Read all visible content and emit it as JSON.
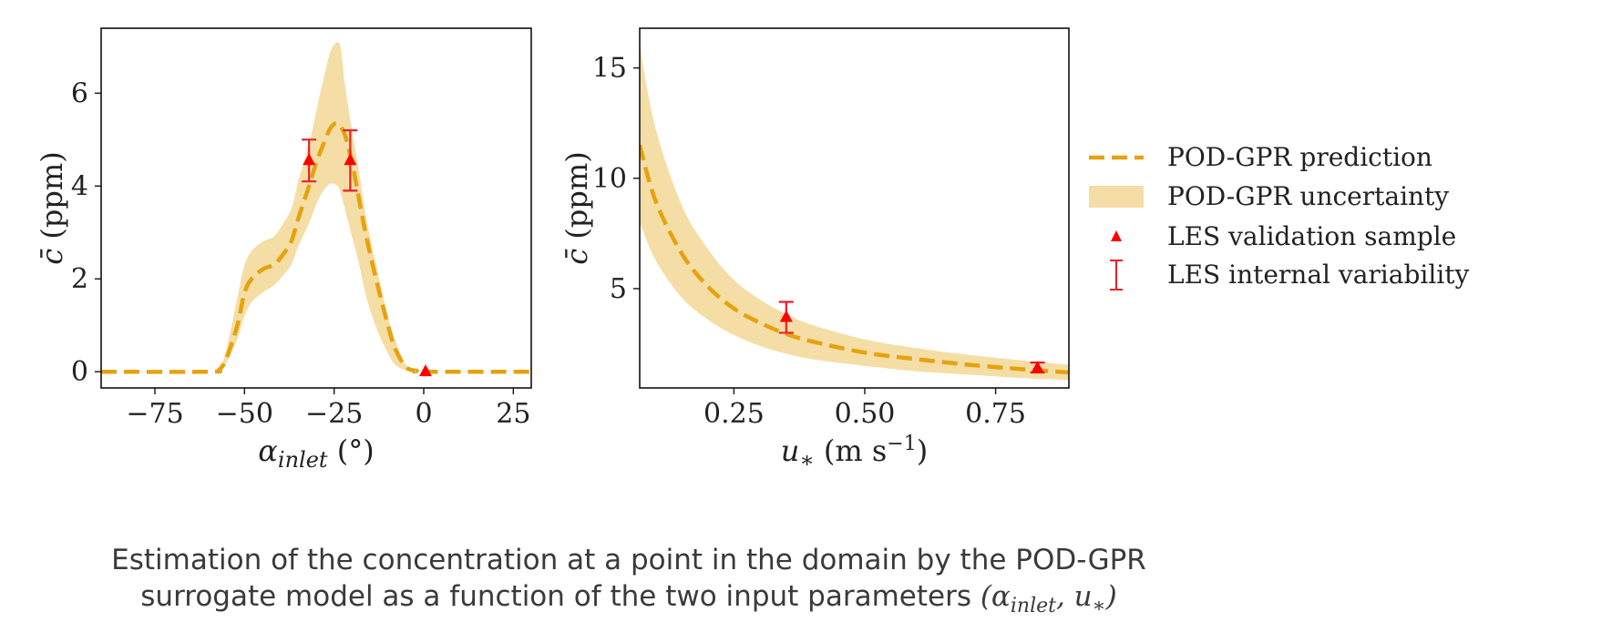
{
  "chart_data": [
    {
      "type": "line",
      "xlabel": "α_inlet (°)",
      "ylabel": "c̄ (ppm)",
      "xlim": [
        -90,
        30
      ],
      "ylim": [
        -0.35,
        7.4
      ],
      "xticks": [
        -75,
        -50,
        -25,
        0,
        25
      ],
      "xtick_labels": [
        "−75",
        "−50",
        "−25",
        "0",
        "25"
      ],
      "yticks": [
        0,
        2,
        4,
        6
      ],
      "ytick_labels": [
        "0",
        "2",
        "4",
        "6"
      ],
      "series": [
        {
          "name": "POD-GPR prediction",
          "style": "dashed",
          "x": [
            -90,
            -60,
            -57,
            -55,
            -52,
            -50,
            -48,
            -45,
            -42,
            -40,
            -37,
            -35,
            -32,
            -30,
            -28,
            -26,
            -24,
            -22,
            -20,
            -18,
            -16,
            -13,
            -10,
            -8,
            -5,
            -2,
            0,
            30
          ],
          "y": [
            0,
            0,
            0.05,
            0.3,
            1.0,
            1.7,
            2.0,
            2.2,
            2.3,
            2.45,
            2.8,
            3.3,
            4.0,
            4.5,
            4.9,
            5.25,
            5.35,
            5.1,
            4.5,
            3.7,
            2.9,
            1.9,
            1.0,
            0.5,
            0.1,
            0.02,
            0,
            0
          ]
        },
        {
          "name": "POD-GPR uncertainty",
          "style": "band",
          "x": [
            -90,
            -60,
            -57,
            -55,
            -52,
            -50,
            -48,
            -45,
            -42,
            -40,
            -37,
            -35,
            -32,
            -30,
            -28,
            -26,
            -24,
            -23,
            -22,
            -20,
            -18,
            -16,
            -13,
            -10,
            -8,
            -5,
            -2,
            0,
            30
          ],
          "lower": [
            0,
            0,
            0.03,
            0.2,
            0.7,
            1.2,
            1.5,
            1.7,
            1.85,
            2.0,
            2.3,
            2.7,
            3.2,
            3.6,
            3.9,
            4.05,
            4.0,
            3.8,
            3.5,
            2.9,
            2.3,
            1.6,
            0.9,
            0.4,
            0.15,
            0.03,
            0.01,
            0,
            0
          ],
          "upper": [
            0,
            0,
            0.1,
            0.5,
            1.6,
            2.3,
            2.6,
            2.8,
            2.9,
            3.1,
            3.5,
            4.1,
            4.9,
            5.6,
            6.3,
            6.9,
            7.1,
            6.9,
            6.2,
            5.2,
            4.3,
            3.3,
            2.2,
            1.2,
            0.7,
            0.15,
            0.03,
            0,
            0
          ]
        }
      ],
      "samples": {
        "name": "LES validation sample",
        "x": [
          -32,
          -20.5,
          0.5
        ],
        "y": [
          4.55,
          4.55,
          0
        ]
      },
      "error_bars": {
        "name": "LES internal variability",
        "x": [
          -32,
          -20.5
        ],
        "low": [
          4.1,
          3.9
        ],
        "high": [
          5.0,
          5.2
        ]
      },
      "grid": false
    },
    {
      "type": "line",
      "xlabel": "u∗ (m s⁻¹)",
      "ylabel": "c̄ (ppm)",
      "xlim": [
        0.07,
        0.89
      ],
      "ylim": [
        0.5,
        16.8
      ],
      "xticks": [
        0.25,
        0.5,
        0.75
      ],
      "xtick_labels": [
        "0.25",
        "0.50",
        "0.75"
      ],
      "yticks": [
        5,
        10,
        15
      ],
      "ytick_labels": [
        "5",
        "10",
        "15"
      ],
      "series": [
        {
          "name": "POD-GPR prediction",
          "style": "dashed",
          "x": [
            0.07,
            0.1,
            0.15,
            0.2,
            0.25,
            0.3,
            0.35,
            0.4,
            0.5,
            0.6,
            0.7,
            0.8,
            0.89
          ],
          "y": [
            11.5,
            9.0,
            6.6,
            5.1,
            4.1,
            3.45,
            2.95,
            2.6,
            2.1,
            1.8,
            1.55,
            1.35,
            1.2
          ]
        },
        {
          "name": "POD-GPR uncertainty",
          "style": "band",
          "x": [
            0.07,
            0.1,
            0.15,
            0.2,
            0.25,
            0.3,
            0.35,
            0.4,
            0.5,
            0.6,
            0.7,
            0.8,
            0.89
          ],
          "lower": [
            8.0,
            6.3,
            4.6,
            3.6,
            2.9,
            2.4,
            2.05,
            1.8,
            1.5,
            1.25,
            1.1,
            0.95,
            0.85
          ],
          "upper": [
            16.0,
            12.3,
            8.8,
            6.8,
            5.4,
            4.5,
            3.85,
            3.35,
            2.7,
            2.3,
            2.0,
            1.75,
            1.55
          ]
        }
      ],
      "samples": {
        "name": "LES validation sample",
        "x": [
          0.35,
          0.83
        ],
        "y": [
          3.7,
          1.4
        ]
      },
      "error_bars": {
        "name": "LES internal variability",
        "x": [
          0.35,
          0.83
        ],
        "low": [
          3.0,
          1.2
        ],
        "high": [
          4.4,
          1.65
        ]
      },
      "grid": false
    }
  ],
  "legend": {
    "placement": "right",
    "entries": [
      "POD-GPR prediction",
      "POD-GPR uncertainty",
      "LES validation sample",
      "LES internal variability"
    ]
  },
  "colors": {
    "prediction": "#e6a20e",
    "uncertainty": "#f5dea6",
    "sample": "#ff0000",
    "errorbar": "#e8202a"
  },
  "caption": {
    "line1": "Estimation of the concentration at a point in the domain by the POD-GPR",
    "line2_prefix": "surrogate model as a function of the two input parameters ",
    "line2_math": "(αinlet, u∗)"
  }
}
